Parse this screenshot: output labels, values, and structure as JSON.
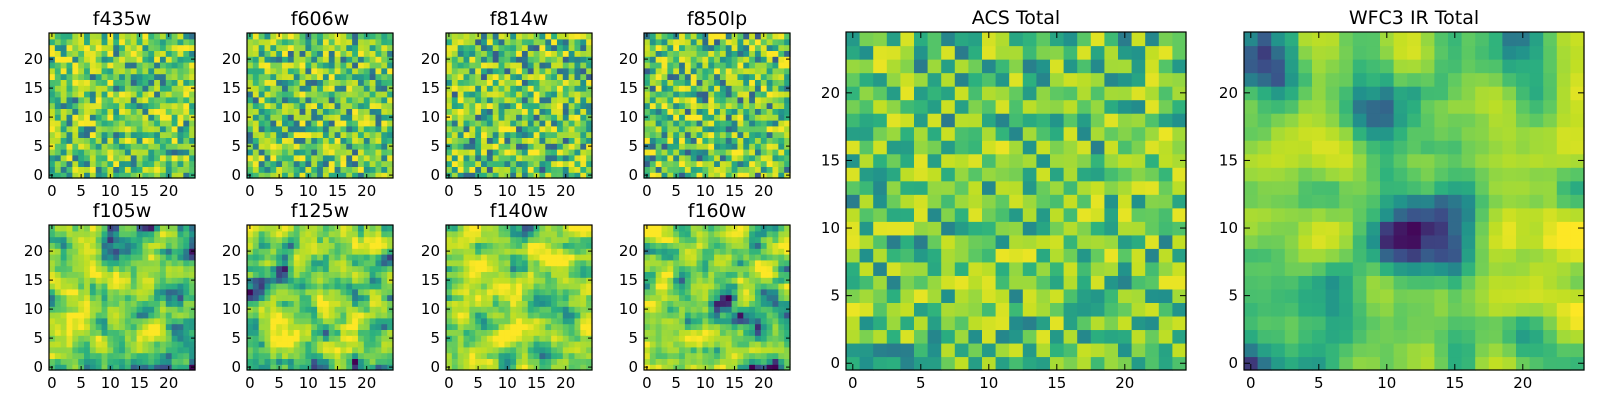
{
  "figure": {
    "title": ""
  },
  "palette": {
    "name": "viridis-upper",
    "stops": [
      "#440154",
      "#3b528b",
      "#21918c",
      "#2cb17e",
      "#5ec962",
      "#9bd93c",
      "#c2df23",
      "#fde725"
    ]
  },
  "chart_data": [
    {
      "type": "heatmap",
      "title": "f435w",
      "grid_size": [
        25,
        25
      ],
      "xlim": [
        0,
        25
      ],
      "ylim": [
        0,
        25
      ],
      "xticks": [
        0,
        5,
        10,
        15,
        20
      ],
      "yticks": [
        0,
        5,
        10,
        15,
        20
      ],
      "value_range": [
        0,
        1
      ],
      "seed": 11,
      "smoothness": 0,
      "base_level": 0.62,
      "spread": 0.24
    },
    {
      "type": "heatmap",
      "title": "f606w",
      "grid_size": [
        25,
        25
      ],
      "xlim": [
        0,
        25
      ],
      "ylim": [
        0,
        25
      ],
      "xticks": [
        0,
        5,
        10,
        15,
        20
      ],
      "yticks": [
        0,
        5,
        10,
        15,
        20
      ],
      "value_range": [
        0,
        1
      ],
      "seed": 23,
      "smoothness": 0,
      "base_level": 0.6,
      "spread": 0.25
    },
    {
      "type": "heatmap",
      "title": "f814w",
      "grid_size": [
        25,
        25
      ],
      "xlim": [
        0,
        25
      ],
      "ylim": [
        0,
        25
      ],
      "xticks": [
        0,
        5,
        10,
        15,
        20
      ],
      "yticks": [
        0,
        5,
        10,
        15,
        20
      ],
      "value_range": [
        0,
        1
      ],
      "seed": 37,
      "smoothness": 0,
      "base_level": 0.6,
      "spread": 0.26
    },
    {
      "type": "heatmap",
      "title": "f850lp",
      "grid_size": [
        25,
        25
      ],
      "xlim": [
        0,
        25
      ],
      "ylim": [
        0,
        25
      ],
      "xticks": [
        0,
        5,
        10,
        15,
        20
      ],
      "yticks": [
        0,
        5,
        10,
        15,
        20
      ],
      "value_range": [
        0,
        1
      ],
      "seed": 41,
      "smoothness": 0,
      "base_level": 0.6,
      "spread": 0.26
    },
    {
      "type": "heatmap",
      "title": "f105w",
      "grid_size": [
        25,
        25
      ],
      "xlim": [
        0,
        25
      ],
      "ylim": [
        0,
        25
      ],
      "xticks": [
        0,
        5,
        10,
        15,
        20
      ],
      "yticks": [
        0,
        5,
        10,
        15,
        20
      ],
      "value_range": [
        0,
        1
      ],
      "seed": 53,
      "smoothness": 1,
      "base_level": 0.6,
      "spread": 0.22
    },
    {
      "type": "heatmap",
      "title": "f125w",
      "grid_size": [
        25,
        25
      ],
      "xlim": [
        0,
        25
      ],
      "ylim": [
        0,
        25
      ],
      "xticks": [
        0,
        5,
        10,
        15,
        20
      ],
      "yticks": [
        0,
        5,
        10,
        15,
        20
      ],
      "value_range": [
        0,
        1
      ],
      "seed": 67,
      "smoothness": 1,
      "base_level": 0.62,
      "spread": 0.22
    },
    {
      "type": "heatmap",
      "title": "f140w",
      "grid_size": [
        25,
        25
      ],
      "xlim": [
        0,
        25
      ],
      "ylim": [
        0,
        25
      ],
      "xticks": [
        0,
        5,
        10,
        15,
        20
      ],
      "yticks": [
        0,
        5,
        10,
        15,
        20
      ],
      "value_range": [
        0,
        1
      ],
      "seed": 71,
      "smoothness": 1,
      "base_level": 0.7,
      "spread": 0.2
    },
    {
      "type": "heatmap",
      "title": "f160w",
      "grid_size": [
        25,
        25
      ],
      "xlim": [
        0,
        25
      ],
      "ylim": [
        0,
        25
      ],
      "xticks": [
        0,
        5,
        10,
        15,
        20
      ],
      "yticks": [
        0,
        5,
        10,
        15,
        20
      ],
      "value_range": [
        0,
        1
      ],
      "seed": 83,
      "smoothness": 1,
      "base_level": 0.62,
      "spread": 0.22
    },
    {
      "type": "heatmap",
      "title": "ACS Total",
      "grid_size": [
        25,
        25
      ],
      "xlim": [
        0,
        25
      ],
      "ylim": [
        0,
        25
      ],
      "xticks": [
        0,
        5,
        10,
        15,
        20
      ],
      "yticks": [
        0,
        5,
        10,
        15,
        20
      ],
      "value_range": [
        0,
        1
      ],
      "seed": 97,
      "smoothness": 0,
      "base_level": 0.6,
      "spread": 0.22
    },
    {
      "type": "heatmap",
      "title": "WFC3 IR Total",
      "grid_size": [
        25,
        25
      ],
      "xlim": [
        0,
        25
      ],
      "ylim": [
        0,
        25
      ],
      "xticks": [
        0,
        5,
        10,
        15,
        20
      ],
      "yticks": [
        0,
        5,
        10,
        15,
        20
      ],
      "value_range": [
        0,
        1
      ],
      "seed": 109,
      "smoothness": 2,
      "base_level": 0.58,
      "spread": 0.2
    }
  ]
}
